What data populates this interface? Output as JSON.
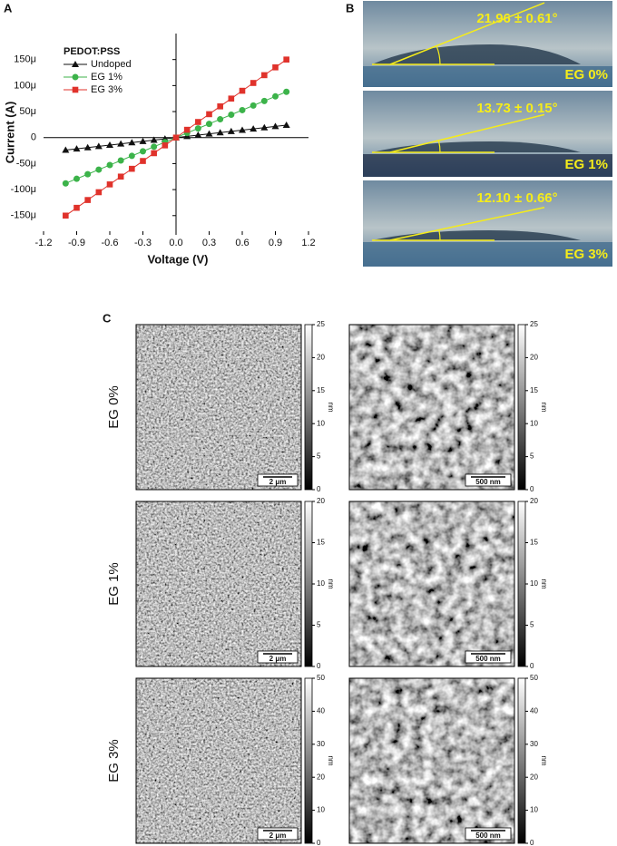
{
  "panel_labels": {
    "a": "A",
    "b": "B",
    "c": "C"
  },
  "chart_data": {
    "type": "line",
    "xlabel": "Voltage (V)",
    "ylabel": "Current (A)",
    "legend_title": "PEDOT:PSS",
    "x": [
      -1,
      -0.9,
      -0.8,
      -0.7,
      -0.6,
      -0.5,
      -0.4,
      -0.3,
      -0.2,
      -0.1,
      0,
      0.1,
      0.2,
      0.3,
      0.4,
      0.5,
      0.6,
      0.7,
      0.8,
      0.9,
      1
    ],
    "series": [
      {
        "name": "Undoped",
        "color": "#111111",
        "marker": "triangle",
        "values": [
          -2.4e-05,
          -2.16e-05,
          -1.92e-05,
          -1.68e-05,
          -1.44e-05,
          -1.2e-05,
          -9.6e-06,
          -7.2e-06,
          -4.8e-06,
          -2.4e-06,
          0,
          2.4e-06,
          4.8e-06,
          7.2e-06,
          9.6e-06,
          1.2e-05,
          1.44e-05,
          1.68e-05,
          1.92e-05,
          2.16e-05,
          2.4e-05
        ]
      },
      {
        "name": "EG 1%",
        "color": "#3cb34a",
        "marker": "circle",
        "values": [
          -8.8e-05,
          -7.92e-05,
          -7.04e-05,
          -6.16e-05,
          -5.28e-05,
          -4.4e-05,
          -3.52e-05,
          -2.64e-05,
          -1.76e-05,
          -8.8e-06,
          0,
          8.8e-06,
          1.76e-05,
          2.64e-05,
          3.52e-05,
          4.4e-05,
          5.28e-05,
          6.16e-05,
          7.04e-05,
          7.92e-05,
          8.8e-05
        ]
      },
      {
        "name": "EG 3%",
        "color": "#e0322b",
        "marker": "square",
        "values": [
          -0.00015,
          -0.000135,
          -0.00012,
          -0.000105,
          -9e-05,
          -7.5e-05,
          -6e-05,
          -4.5e-05,
          -3e-05,
          -1.5e-05,
          0,
          1.5e-05,
          3e-05,
          4.5e-05,
          6e-05,
          7.5e-05,
          9e-05,
          0.000105,
          0.00012,
          0.000135,
          0.00015
        ]
      }
    ],
    "xlim": [
      -1.2,
      1.2
    ],
    "xticks": [
      -1.2,
      -0.9,
      -0.6,
      -0.3,
      {
        "value": 0,
        "label": "0.0"
      },
      0.3,
      0.6,
      0.9,
      1.2
    ],
    "ylim": [
      -0.00018,
      0.0002
    ],
    "yticks": [
      {
        "value": -0.00015,
        "label": "-150μ"
      },
      {
        "value": -0.0001,
        "label": "-100μ"
      },
      {
        "value": -5e-05,
        "label": "-50μ"
      },
      0,
      {
        "value": 5e-05,
        "label": "50μ"
      },
      {
        "value": 0.0001,
        "label": "100μ"
      },
      {
        "value": 0.00015,
        "label": "150μ"
      }
    ]
  },
  "contact_angles": [
    {
      "angle": "21.96 ± 0.61°",
      "label": "EG 0%"
    },
    {
      "angle": "13.73 ± 0.15°",
      "label": "EG 1%"
    },
    {
      "angle": "12.10 ± 0.66°",
      "label": "EG 3%"
    }
  ],
  "afm": {
    "unit": "nm",
    "scale_bars": [
      "2 μm",
      "500 nm"
    ],
    "rows": [
      {
        "label": "EG 0%",
        "colorbar_ticks": [
          0,
          5,
          10,
          15,
          20,
          25
        ]
      },
      {
        "label": "EG 1%",
        "colorbar_ticks": [
          0,
          5,
          10,
          15,
          20
        ]
      },
      {
        "label": "EG 3%",
        "colorbar_ticks": [
          0,
          10,
          20,
          30,
          40,
          50
        ]
      }
    ]
  }
}
